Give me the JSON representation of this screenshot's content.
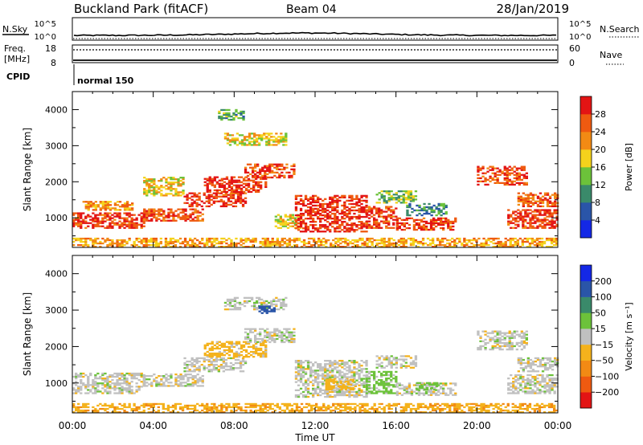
{
  "header": {
    "site": "Buckland Park (fitACF)",
    "beam": "Beam 04",
    "date": "28/Jan/2019"
  },
  "status_panels": {
    "nsky_label": "N.Sky",
    "nsearch_label": "N.Search",
    "noise_ticks": [
      "10^5",
      "10^0"
    ],
    "freq_label_1": "Freq.",
    "freq_label_2": "[MHz]",
    "freq_ticks": [
      "18",
      "8"
    ],
    "nave_label": "Nave",
    "nave_ticks": [
      "60",
      "0"
    ],
    "cpid_label": "CPID",
    "cpid_value": "normal 150"
  },
  "chart_data": [
    {
      "type": "heatmap",
      "title": "",
      "quantity": "Power",
      "ylabel": "Slant Range [km]",
      "xlabel": "",
      "ylim": [
        180,
        4500
      ],
      "yticks": [
        "1000",
        "2000",
        "3000",
        "4000"
      ],
      "colorbar": {
        "label": "Power [dB]",
        "tick_labels": [
          "4",
          "8",
          "12",
          "16",
          "20",
          "24",
          "28"
        ],
        "bins": [
          {
            "from": 0,
            "to": 6,
            "color": "#1428e6"
          },
          {
            "from": 6,
            "to": 10,
            "color": "#2a55a8"
          },
          {
            "from": 10,
            "to": 14,
            "color": "#3a8a6a"
          },
          {
            "from": 14,
            "to": 18,
            "color": "#6cc23a"
          },
          {
            "from": 18,
            "to": 22,
            "color": "#f4d21c"
          },
          {
            "from": 22,
            "to": 26,
            "color": "#f28a14"
          },
          {
            "from": 26,
            "to": 30,
            "color": "#ef5a10"
          },
          {
            "from": 30,
            "to": 34,
            "color": "#e31414"
          }
        ]
      },
      "regions": [
        {
          "t": [
            0.0,
            24.0
          ],
          "r": [
            180,
            420
          ],
          "value": 23
        },
        {
          "t": [
            0.0,
            3.5
          ],
          "r": [
            700,
            1150
          ],
          "value": 30
        },
        {
          "t": [
            0.5,
            3.0
          ],
          "r": [
            1200,
            1450
          ],
          "value": 24
        },
        {
          "t": [
            3.5,
            6.5
          ],
          "r": [
            900,
            1250
          ],
          "value": 29
        },
        {
          "t": [
            5.5,
            8.5
          ],
          "r": [
            1300,
            1700
          ],
          "value": 30
        },
        {
          "t": [
            6.5,
            9.5
          ],
          "r": [
            1700,
            2150
          ],
          "value": 31
        },
        {
          "t": [
            8.5,
            11.0
          ],
          "r": [
            2100,
            2500
          ],
          "value": 29
        },
        {
          "t": [
            3.5,
            5.5
          ],
          "r": [
            1600,
            2100
          ],
          "value": 21
        },
        {
          "t": [
            10.0,
            11.2
          ],
          "r": [
            700,
            1100
          ],
          "value": 19
        },
        {
          "t": [
            11.0,
            14.5
          ],
          "r": [
            600,
            1600
          ],
          "value": 31
        },
        {
          "t": [
            14.5,
            16.0
          ],
          "r": [
            700,
            1300
          ],
          "value": 29
        },
        {
          "t": [
            15.0,
            17.0
          ],
          "r": [
            1400,
            1750
          ],
          "value": 16
        },
        {
          "t": [
            16.0,
            19.0
          ],
          "r": [
            650,
            1000
          ],
          "value": 30
        },
        {
          "t": [
            16.5,
            18.5
          ],
          "r": [
            1050,
            1400
          ],
          "value": 12
        },
        {
          "t": [
            20.0,
            22.5
          ],
          "r": [
            1900,
            2400
          ],
          "value": 29
        },
        {
          "t": [
            21.5,
            24.0
          ],
          "r": [
            700,
            1200
          ],
          "value": 30
        },
        {
          "t": [
            22.0,
            24.0
          ],
          "r": [
            1300,
            1700
          ],
          "value": 27
        },
        {
          "t": [
            7.5,
            10.5
          ],
          "r": [
            3000,
            3350
          ],
          "value": 20
        },
        {
          "t": [
            7.2,
            8.4
          ],
          "r": [
            3700,
            4000
          ],
          "value": 14
        }
      ]
    },
    {
      "type": "heatmap",
      "title": "",
      "quantity": "Velocity",
      "ylabel": "Slant Range [km]",
      "xlabel": "Time UT",
      "ylim": [
        180,
        4500
      ],
      "yticks": [
        "1000",
        "2000",
        "3000",
        "4000"
      ],
      "xticks": [
        "00:00",
        "04:00",
        "08:00",
        "12:00",
        "16:00",
        "20:00",
        "00:00"
      ],
      "xlim_hours": [
        0,
        24
      ],
      "colorbar": {
        "label": "Velocity [m s⁻¹]",
        "tick_labels": [
          "−200",
          "−100",
          "−50",
          "−15",
          "15",
          "50",
          "100",
          "200"
        ],
        "bins": [
          {
            "from": -250,
            "to": -200,
            "color": "#e31414"
          },
          {
            "from": -200,
            "to": -100,
            "color": "#ef5a10"
          },
          {
            "from": -100,
            "to": -50,
            "color": "#f28a14"
          },
          {
            "from": -50,
            "to": -15,
            "color": "#f4b21c"
          },
          {
            "from": -15,
            "to": 15,
            "color": "#c0c0c0"
          },
          {
            "from": 15,
            "to": 50,
            "color": "#6cc23a"
          },
          {
            "from": 50,
            "to": 100,
            "color": "#3a8a6a"
          },
          {
            "from": 100,
            "to": 200,
            "color": "#2a55a8"
          },
          {
            "from": 200,
            "to": 250,
            "color": "#1428e6"
          }
        ]
      },
      "regions": [
        {
          "t": [
            0.0,
            24.0
          ],
          "r": [
            180,
            420
          ],
          "value": -40
        },
        {
          "t": [
            0.0,
            3.5
          ],
          "r": [
            700,
            1250
          ],
          "value": 0
        },
        {
          "t": [
            3.5,
            6.5
          ],
          "r": [
            900,
            1250
          ],
          "value": 0
        },
        {
          "t": [
            5.5,
            8.5
          ],
          "r": [
            1300,
            1700
          ],
          "value": 0
        },
        {
          "t": [
            6.5,
            9.5
          ],
          "r": [
            1700,
            2150
          ],
          "value": -30
        },
        {
          "t": [
            8.5,
            11.0
          ],
          "r": [
            2100,
            2500
          ],
          "value": 0
        },
        {
          "t": [
            11.0,
            14.5
          ],
          "r": [
            600,
            1600
          ],
          "value": 0
        },
        {
          "t": [
            12.5,
            14.0
          ],
          "r": [
            800,
            1100
          ],
          "value": -30
        },
        {
          "t": [
            14.5,
            16.0
          ],
          "r": [
            700,
            1300
          ],
          "value": 30
        },
        {
          "t": [
            15.0,
            17.0
          ],
          "r": [
            1400,
            1750
          ],
          "value": 0
        },
        {
          "t": [
            16.0,
            19.0
          ],
          "r": [
            650,
            1000
          ],
          "value": 0
        },
        {
          "t": [
            17.0,
            18.2
          ],
          "r": [
            800,
            1000
          ],
          "value": 30
        },
        {
          "t": [
            20.0,
            22.5
          ],
          "r": [
            1900,
            2400
          ],
          "value": 0
        },
        {
          "t": [
            21.5,
            24.0
          ],
          "r": [
            700,
            1200
          ],
          "value": 0
        },
        {
          "t": [
            22.0,
            24.0
          ],
          "r": [
            1300,
            1700
          ],
          "value": 0
        },
        {
          "t": [
            7.5,
            10.5
          ],
          "r": [
            3000,
            3350
          ],
          "value": 0
        },
        {
          "t": [
            9.2,
            10.0
          ],
          "r": [
            2900,
            3100
          ],
          "value": 150
        }
      ]
    }
  ]
}
